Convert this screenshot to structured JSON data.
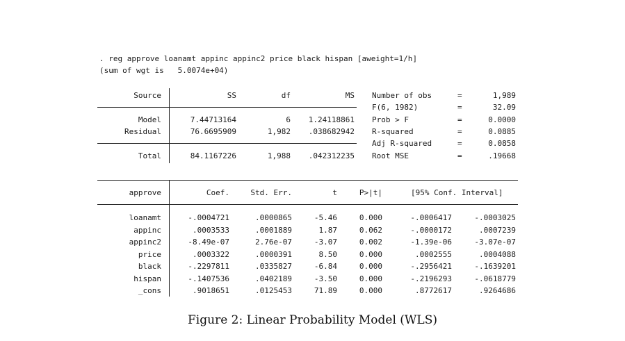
{
  "command": ". reg approve loanamt appinc appinc2 price black hispan [aweight=1/h]",
  "sum_of_weights": "(sum of wgt is   5.0074e+04)",
  "anova": {
    "headers": {
      "source": "Source",
      "ss": "SS",
      "df": "df",
      "ms": "MS"
    },
    "rows": [
      {
        "source": "Model",
        "ss": "7.44713164",
        "df": "6",
        "ms": "1.24118861"
      },
      {
        "source": "Residual",
        "ss": "76.6695909",
        "df": "1,982",
        "ms": ".038682942"
      },
      {
        "source": "Total",
        "ss": "84.1167226",
        "df": "1,988",
        "ms": ".042312235"
      }
    ]
  },
  "stats": [
    {
      "label": "Number of obs",
      "eq": "=",
      "value": "1,989"
    },
    {
      "label": "F(6, 1982)",
      "eq": "=",
      "value": "32.09"
    },
    {
      "label": "Prob > F",
      "eq": "=",
      "value": "0.0000"
    },
    {
      "label": "R-squared",
      "eq": "=",
      "value": "0.0885"
    },
    {
      "label": "Adj R-squared",
      "eq": "=",
      "value": "0.0858"
    },
    {
      "label": "Root MSE",
      "eq": "=",
      "value": ".19668"
    }
  ],
  "coef": {
    "headers": {
      "var": "approve",
      "coef": "Coef.",
      "se": "Std. Err.",
      "t": "t",
      "p": "P>|t|",
      "ci": "[95% Conf. Interval]"
    },
    "rows": [
      {
        "var": "loanamt",
        "coef": "-.0004721",
        "se": ".0000865",
        "t": "-5.46",
        "p": "0.000",
        "lo": "-.0006417",
        "hi": "-.0003025"
      },
      {
        "var": "appinc",
        "coef": ".0003533",
        "se": ".0001889",
        "t": "1.87",
        "p": "0.062",
        "lo": "-.0000172",
        "hi": ".0007239"
      },
      {
        "var": "appinc2",
        "coef": "-8.49e-07",
        "se": "2.76e-07",
        "t": "-3.07",
        "p": "0.002",
        "lo": "-1.39e-06",
        "hi": "-3.07e-07"
      },
      {
        "var": "price",
        "coef": ".0003322",
        "se": ".0000391",
        "t": "8.50",
        "p": "0.000",
        "lo": ".0002555",
        "hi": ".0004088"
      },
      {
        "var": "black",
        "coef": "-.2297811",
        "se": ".0335827",
        "t": "-6.84",
        "p": "0.000",
        "lo": "-.2956421",
        "hi": "-.1639201"
      },
      {
        "var": "hispan",
        "coef": "-.1407536",
        "se": ".0402189",
        "t": "-3.50",
        "p": "0.000",
        "lo": "-.2196293",
        "hi": "-.0618779"
      },
      {
        "var": "_cons",
        "coef": ".9018651",
        "se": ".0125453",
        "t": "71.89",
        "p": "0.000",
        "lo": ".8772617",
        "hi": ".9264686"
      }
    ]
  },
  "caption": "Figure 2: Linear Probability Model (WLS)"
}
